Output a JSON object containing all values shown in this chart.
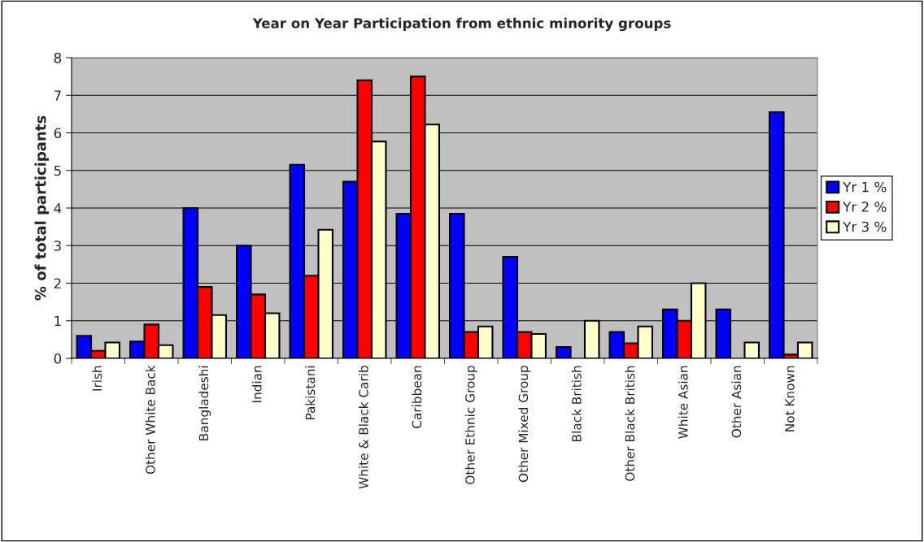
{
  "chart_data": {
    "type": "bar",
    "title": "Year on Year Participation from ethnic minority groups",
    "ylabel": "% of total participants",
    "categories": [
      "Irish",
      "Other White Back",
      "Bangladeshi",
      "Indian",
      "Pakistani",
      "White & Black Carib",
      "Caribbean",
      "Other Ethnic Group",
      "Other Mixed Group",
      "Black British",
      "Other Black British",
      "White Asian",
      "Other Asian",
      "Not Known"
    ],
    "series": [
      {
        "name": "Yr 1 %",
        "color": "#0000ff",
        "values": [
          0.6,
          0.45,
          4.0,
          3.0,
          5.15,
          4.7,
          3.85,
          3.85,
          2.7,
          0.3,
          0.7,
          1.3,
          1.3,
          6.55
        ]
      },
      {
        "name": "Yr 2 %",
        "color": "#ff0000",
        "values": [
          0.2,
          0.9,
          1.9,
          1.7,
          2.2,
          7.4,
          7.5,
          0.7,
          0.7,
          null,
          0.4,
          1.0,
          null,
          0.1
        ]
      },
      {
        "name": "Yr 3 %",
        "color": "#ffffcc",
        "values": [
          0.42,
          0.35,
          1.15,
          1.2,
          3.42,
          5.77,
          6.22,
          0.85,
          0.65,
          1.0,
          0.85,
          2.0,
          0.42,
          0.42
        ]
      }
    ],
    "ylim": [
      0,
      8
    ],
    "yticks": [
      0,
      1,
      2,
      3,
      4,
      5,
      6,
      7,
      8
    ],
    "grid": "y",
    "legend": "right"
  }
}
